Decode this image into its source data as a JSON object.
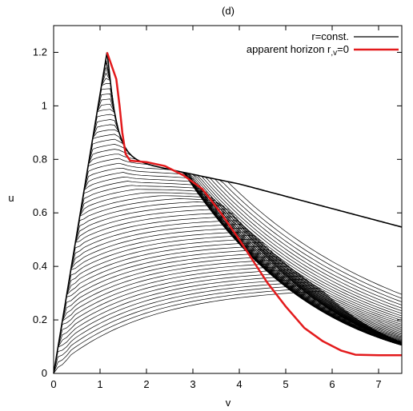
{
  "chart_data": {
    "type": "line",
    "title": "(d)",
    "xlabel": "v",
    "ylabel": "u",
    "xlim": [
      0,
      7.5
    ],
    "ylim": [
      0,
      1.3
    ],
    "x_ticks": [
      "0",
      "1",
      "2",
      "3",
      "4",
      "5",
      "6",
      "7"
    ],
    "y_ticks": [
      "0",
      "0.2",
      "0.4",
      "0.6",
      "0.8",
      "1",
      "1.2"
    ],
    "grid": false,
    "legend_position": "top-right",
    "legend": [
      {
        "label": "r=const.",
        "color": "#000000"
      },
      {
        "label": "apparent horizon r,v=0",
        "color": "#e31a1c"
      }
    ],
    "series": [
      {
        "name": "apparent horizon r,v=0",
        "color": "#e31a1c",
        "x": [
          1.15,
          1.25,
          1.35,
          1.42,
          1.48,
          1.55,
          1.65,
          2.0,
          2.4,
          2.8,
          3.2,
          3.6,
          4.0,
          4.3,
          4.6,
          5.0,
          5.4,
          5.8,
          6.2,
          6.5,
          7.0,
          7.5
        ],
        "y": [
          1.2,
          1.15,
          1.1,
          1.0,
          0.9,
          0.82,
          0.795,
          0.79,
          0.775,
          0.74,
          0.69,
          0.6,
          0.5,
          0.42,
          0.34,
          0.25,
          0.17,
          0.12,
          0.085,
          0.07,
          0.068,
          0.068
        ]
      }
    ],
    "curve_family": {
      "name": "r=const.",
      "color": "#000000",
      "peak": [
        1.15,
        1.2
      ]
    }
  }
}
